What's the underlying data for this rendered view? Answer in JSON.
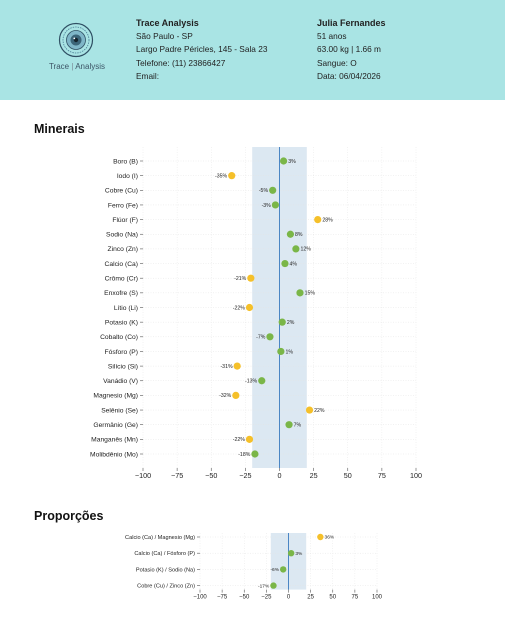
{
  "header": {
    "logo": {
      "name": "Trace",
      "sep": "|",
      "suffix": "Analysis",
      "icon": "eye-logo-icon"
    },
    "lab": {
      "name": "Trace Analysis",
      "city": "São Paulo - SP",
      "address": "Largo Padre Péricles, 145 - Sala 23",
      "phone": "Telefone: (11) 23866427",
      "email": "Email:"
    },
    "patient": {
      "name": "Julia Fernandes",
      "age": "51 anos",
      "body": "63.00 kg | 1.66 m",
      "blood": "Sangue: O",
      "date": "Data: 06/04/2026"
    }
  },
  "sections": {
    "minerals_title": "Minerais",
    "ratios_title": "Proporções"
  },
  "colors": {
    "header_bg": "#a9e4e4",
    "normal": "#7ab648",
    "out_of_range": "#f5c02a",
    "band": "#dce8f2",
    "zero_line": "#4b86c4"
  },
  "chart_data": [
    {
      "type": "scatter",
      "title": "Minerais",
      "xlim": [
        -100,
        100
      ],
      "xticks": [
        -100,
        -75,
        -50,
        -25,
        0,
        25,
        50,
        75,
        100
      ],
      "normal_band": [
        -20,
        20
      ],
      "grid": true,
      "categories": [
        "Boro (B)",
        "Iodo (I)",
        "Cobre (Cu)",
        "Ferro (Fe)",
        "Flúor (F)",
        "Sodio (Na)",
        "Zinco (Zn)",
        "Calcio (Ca)",
        "Crômo (Cr)",
        "Enxofre (S)",
        "Lítio (Li)",
        "Potasio (K)",
        "Cobalto (Co)",
        "Fósforo (P)",
        "Silício (Si)",
        "Vanádio (V)",
        "Magnesio (Mg)",
        "Selênio (Se)",
        "Germânio (Ge)",
        "Manganês (Mn)",
        "Molibdênio (Mo)"
      ],
      "values": [
        3,
        -35,
        -5,
        -3,
        28,
        8,
        12,
        4,
        -21,
        15,
        -22,
        2,
        -7,
        1,
        -31,
        -13,
        -32,
        22,
        7,
        -22,
        -18
      ],
      "labels": [
        "3%",
        "-35%",
        "-5%",
        "-3%",
        "28%",
        "8%",
        "12%",
        "4%",
        "-21%",
        "15%",
        "-22%",
        "2%",
        "-7%",
        "1%",
        "-31%",
        "-13%",
        "-32%",
        "22%",
        "7%",
        "-22%",
        "-18%"
      ]
    },
    {
      "type": "scatter",
      "title": "Proporções",
      "xlim": [
        -100,
        100
      ],
      "xticks": [
        -100,
        -75,
        -50,
        -25,
        0,
        25,
        50,
        75,
        100
      ],
      "normal_band": [
        -20,
        20
      ],
      "grid": true,
      "categories": [
        "Calcio (Ca) / Magnesio (Mg)",
        "Calcio (Ca) / Fósforo (P)",
        "Potasio (K) / Sodio (Na)",
        "Cobre (Cu) / Zinco (Zn)"
      ],
      "values": [
        36,
        3,
        -6,
        -17
      ],
      "labels": [
        "36%",
        "3%",
        "-6%",
        "-17%"
      ]
    }
  ]
}
